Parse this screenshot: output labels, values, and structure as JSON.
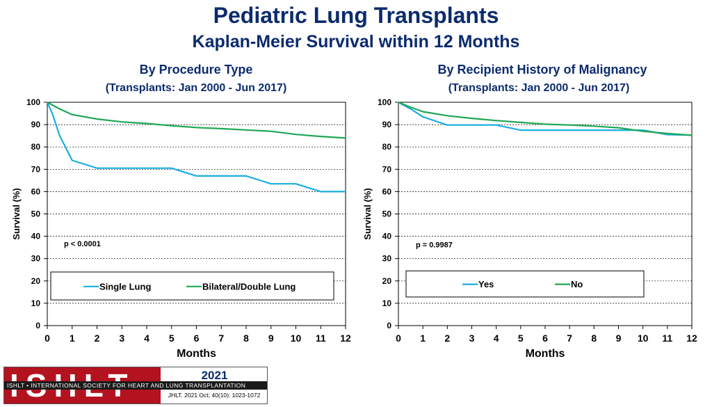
{
  "header": {
    "title": "Pediatric Lung Transplants",
    "subtitle": "Kaplan-Meier Survival within 12 Months"
  },
  "footer": {
    "logo_text": "ISHLT",
    "org_band": "ISHLT • INTERNATIONAL SOCIETY FOR HEART AND LUNG TRANSPLANTATION",
    "year": "2021",
    "citation": "JHLT. 2021 Oct; 40(10): 1023-1072"
  },
  "chart_data": [
    {
      "type": "line",
      "title": "By Procedure Type",
      "subtitle": "(Transplants: Jan 2000 - Jun 2017)",
      "xlabel": "Months",
      "ylabel": "Survival (%)",
      "xlim": [
        0,
        12
      ],
      "ylim": [
        0,
        100
      ],
      "xticks": [
        0,
        1,
        2,
        3,
        4,
        5,
        6,
        7,
        8,
        9,
        10,
        11,
        12
      ],
      "yticks": [
        0,
        10,
        20,
        30,
        40,
        50,
        60,
        70,
        80,
        90,
        100
      ],
      "grid": "horizontal dashed",
      "annotation": "p < 0.0001",
      "legend_position": "bottom",
      "series": [
        {
          "name": "Single Lung",
          "color": "#1aaee0",
          "x": [
            0,
            0.2,
            0.5,
            1,
            2,
            3,
            4,
            5,
            6,
            7,
            8,
            9,
            10,
            11,
            12
          ],
          "y": [
            100,
            95,
            85,
            74,
            70.5,
            70.5,
            70.5,
            70.5,
            67,
            67,
            67,
            63.5,
            63.5,
            60,
            60
          ]
        },
        {
          "name": "Bilateral/Double Lung",
          "color": "#1fa754",
          "x": [
            0,
            0.5,
            1,
            2,
            3,
            4,
            5,
            6,
            7,
            8,
            9,
            10,
            11,
            12
          ],
          "y": [
            100,
            97,
            94.5,
            92.5,
            91.2,
            90.5,
            89.5,
            88.7,
            88.2,
            87.6,
            87,
            85.6,
            84.7,
            84
          ]
        }
      ]
    },
    {
      "type": "line",
      "title": "By Recipient History of Malignancy",
      "subtitle": "(Transplants: Jan 2000 - Jun 2017)",
      "xlabel": "Months",
      "ylabel": "Survival (%)",
      "xlim": [
        0,
        12
      ],
      "ylim": [
        0,
        100
      ],
      "xticks": [
        0,
        1,
        2,
        3,
        4,
        5,
        6,
        7,
        8,
        9,
        10,
        11,
        12
      ],
      "yticks": [
        0,
        10,
        20,
        30,
        40,
        50,
        60,
        70,
        80,
        90,
        100
      ],
      "grid": "horizontal dashed",
      "annotation": "p = 0.9987",
      "legend_position": "bottom",
      "series": [
        {
          "name": "Yes",
          "color": "#1aaee0",
          "x": [
            0,
            0.5,
            1,
            2,
            3,
            4,
            5,
            6,
            7,
            8,
            9,
            10,
            11,
            12
          ],
          "y": [
            100,
            97,
            93.5,
            89.8,
            89.8,
            89.8,
            87.5,
            87.5,
            87.5,
            87.5,
            87.5,
            87.5,
            85.5,
            85.3
          ]
        },
        {
          "name": "No",
          "color": "#1fa754",
          "x": [
            0,
            0.5,
            1,
            2,
            3,
            4,
            5,
            6,
            7,
            8,
            9,
            10,
            11,
            12
          ],
          "y": [
            100,
            97.8,
            95.8,
            94,
            92.8,
            91.8,
            91,
            90.2,
            89.8,
            89.3,
            88.6,
            87,
            86,
            85.2
          ]
        }
      ]
    }
  ]
}
